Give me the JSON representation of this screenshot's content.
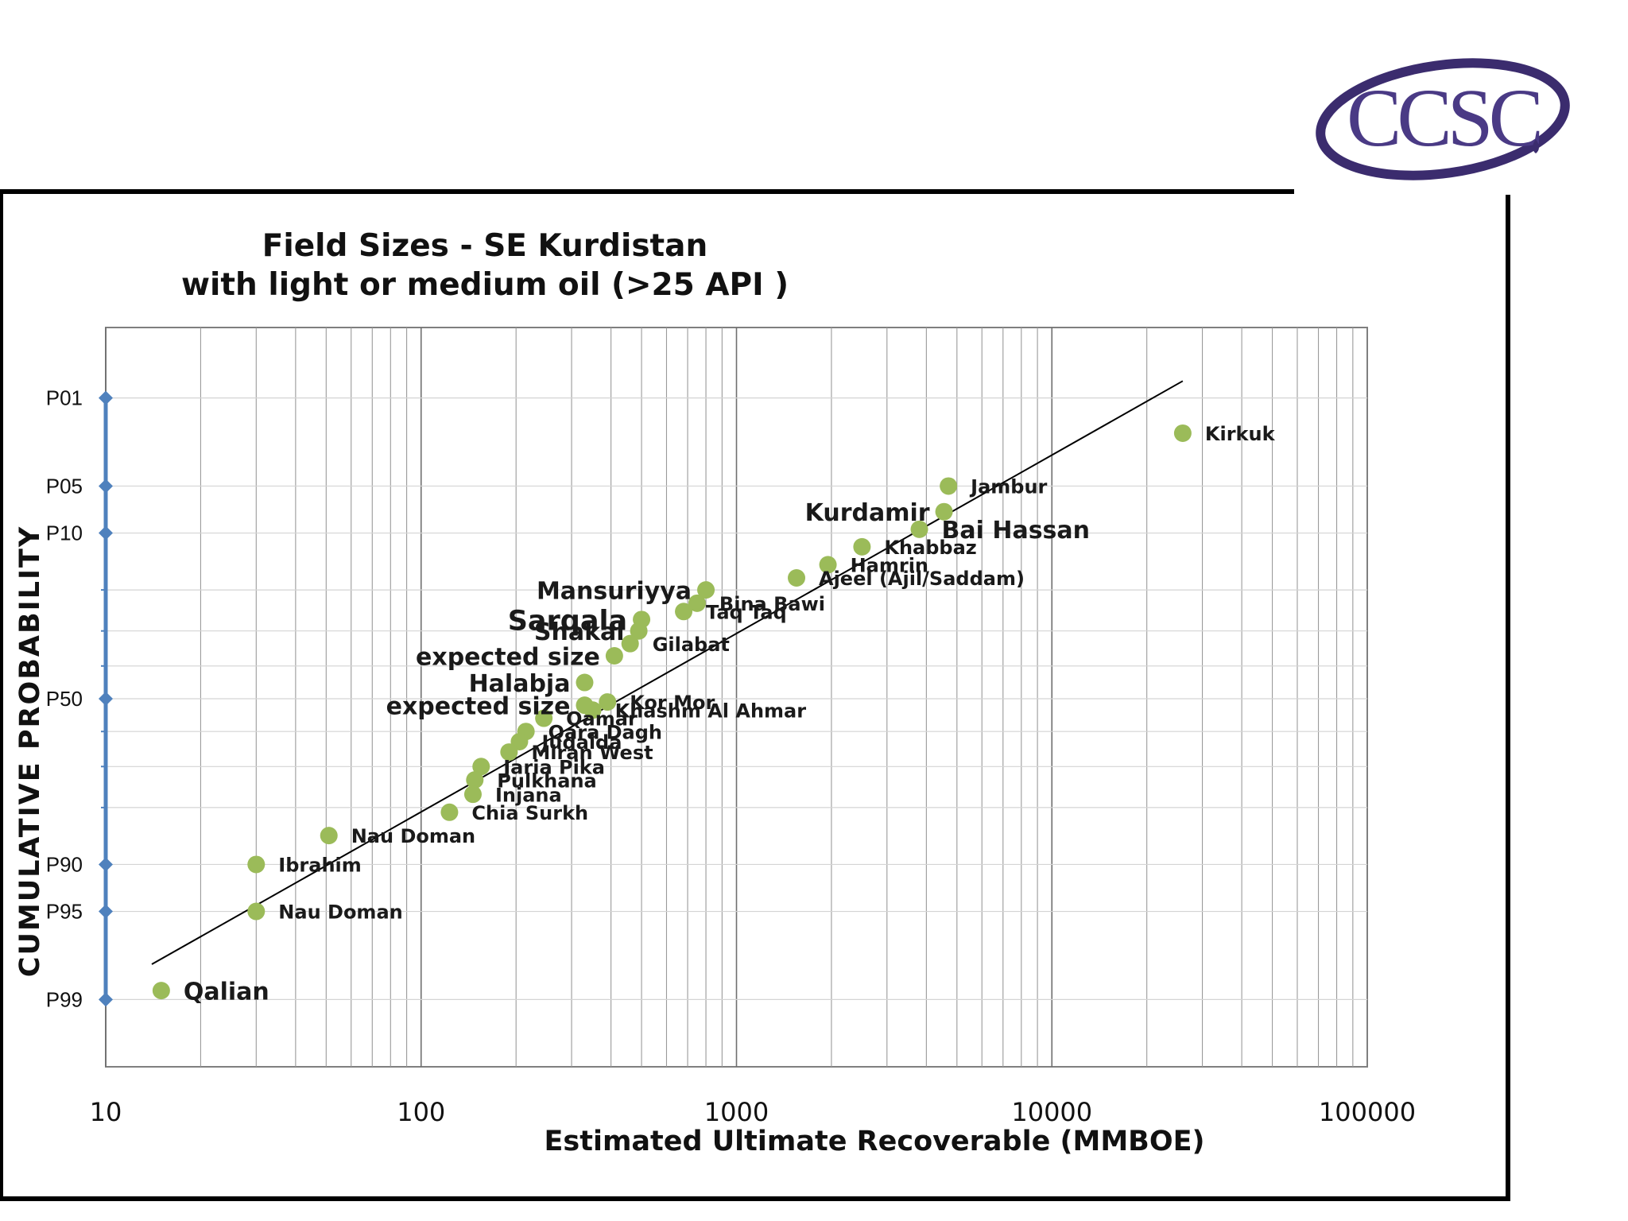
{
  "logo": {
    "text": "CCSC",
    "colors": {
      "swoosh": "#3b2c6e",
      "letters": "#4a3a85"
    }
  },
  "chart_data": {
    "type": "scatter",
    "title": "Field Sizes - SE Kurdistan\nwith light or medium oil (>25 API )",
    "xlabel": "Estimated Ultimate Recoverable (MMBOE)",
    "ylabel": "CUMULATIVE  PROBABILITY",
    "x_scale": "log",
    "xlim": [
      10,
      100000
    ],
    "x_ticks": [
      "10",
      "100",
      "1000",
      "10000",
      "100000"
    ],
    "y_scale": "normal-probability",
    "ylim": [
      99.5,
      0.5
    ],
    "y_ticks": [
      {
        "label": "P01",
        "value": 1
      },
      {
        "label": "P05",
        "value": 5
      },
      {
        "label": "P10",
        "value": 10
      },
      {
        "label": "P50",
        "value": 50
      },
      {
        "label": "P90",
        "value": 90
      },
      {
        "label": "P95",
        "value": 95
      },
      {
        "label": "P99",
        "value": 99
      }
    ],
    "grid": true,
    "point_color": "#9bbb59",
    "axis_marker_color": "#4f81bd",
    "trend_line": {
      "x": [
        14,
        26000
      ],
      "p": [
        98,
        0.7
      ]
    },
    "points": [
      {
        "label": "Kirkuk",
        "x": 26000,
        "p": 2
      },
      {
        "label": "Jambur",
        "x": 4700,
        "p": 5
      },
      {
        "label": "Kurdamir",
        "x": 4550,
        "p": 7.4,
        "label_side": "left",
        "emphasis": "large"
      },
      {
        "label": "Bai Hassan",
        "x": 3800,
        "p": 9.5,
        "emphasis": "large"
      },
      {
        "label": "Khabbaz",
        "x": 2500,
        "p": 12
      },
      {
        "label": "Hamrin",
        "x": 1950,
        "p": 15
      },
      {
        "label": "Ajeel (Ajil/Saddam)",
        "x": 1550,
        "p": 17.5
      },
      {
        "label": "Mansuriyya",
        "x": 800,
        "p": 20,
        "label_side": "left",
        "emphasis": "large"
      },
      {
        "label": "Bina Bawi",
        "x": 750,
        "p": 23
      },
      {
        "label": "Taq Taq",
        "x": 680,
        "p": 25
      },
      {
        "label": "Sarqala",
        "x": 500,
        "p": 27,
        "label_side": "left",
        "emphasis": "xlarge"
      },
      {
        "label": "Shakal",
        "x": 490,
        "p": 30,
        "label_side": "left",
        "emphasis": "large"
      },
      {
        "label": "Gilabat",
        "x": 460,
        "p": 33.5
      },
      {
        "label": "expected size",
        "x": 410,
        "p": 37,
        "label_side": "left",
        "emphasis": "large"
      },
      {
        "label": "Halabja",
        "x": 330,
        "p": 45,
        "label_side": "left",
        "emphasis": "large"
      },
      {
        "label": "expected size",
        "x": 330,
        "p": 52,
        "label_side": "left",
        "emphasis": "large"
      },
      {
        "label": "Kor Mor",
        "x": 390,
        "p": 51
      },
      {
        "label": "Khashm Al Ahmar",
        "x": 350,
        "p": 53.5
      },
      {
        "label": "Qamar",
        "x": 245,
        "p": 56
      },
      {
        "label": "Qara Dagh",
        "x": 215,
        "p": 60
      },
      {
        "label": "Judaida",
        "x": 205,
        "p": 63
      },
      {
        "label": "Miran West",
        "x": 190,
        "p": 66
      },
      {
        "label": "Jaria Pika",
        "x": 155,
        "p": 70
      },
      {
        "label": "Pulkhana",
        "x": 148,
        "p": 73.5
      },
      {
        "label": "Injana",
        "x": 146,
        "p": 77
      },
      {
        "label": "Chia Surkh",
        "x": 123,
        "p": 81
      },
      {
        "label": "Nau Doman",
        "x": 51,
        "p": 85.5
      },
      {
        "label": "Ibrahim",
        "x": 30,
        "p": 90
      },
      {
        "label": "Nau Doman",
        "x": 30,
        "p": 95
      },
      {
        "label": "Qalian",
        "x": 15,
        "p": 98.8,
        "emphasis": "large"
      }
    ]
  }
}
